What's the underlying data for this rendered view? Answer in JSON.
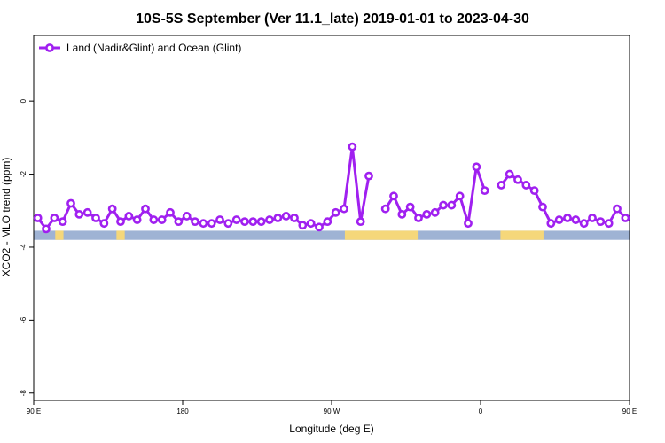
{
  "chart_data": {
    "type": "line",
    "title": "10S-5S September (Ver 11.1_late)   2019-01-01 to 2023-04-30",
    "xlabel": "Longitude (deg E)",
    "ylabel": "XCO2 - MLO trend (ppm)",
    "xlim": [
      90,
      450
    ],
    "ylim": [
      -8.2,
      1.8
    ],
    "x_ticks": [
      {
        "value": 90,
        "label": "90 E"
      },
      {
        "value": 180,
        "label": "180"
      },
      {
        "value": 270,
        "label": "90 W"
      },
      {
        "value": 360,
        "label": "0"
      },
      {
        "value": 450,
        "label": "90 E"
      },
      {
        "value": 540,
        "label": "180"
      }
    ],
    "y_ticks": [
      {
        "value": 0,
        "label": "0"
      },
      {
        "value": -2,
        "label": "-2"
      },
      {
        "value": -4,
        "label": "-4"
      },
      {
        "value": -6,
        "label": "-6"
      },
      {
        "value": -8,
        "label": "-8"
      }
    ],
    "grid": false,
    "legend_position": "top-left",
    "series": [
      {
        "name": "Land (Nadir&Glint) and Ocean (Glint)",
        "color": "#a020f0",
        "points": [
          [
            92.5,
            -3.2
          ],
          [
            97.5,
            -3.5
          ],
          [
            102.5,
            -3.2
          ],
          [
            107.5,
            -3.3
          ],
          [
            112.5,
            -2.8
          ],
          [
            117.5,
            -3.1
          ],
          [
            122.5,
            -3.05
          ],
          [
            127.5,
            -3.2
          ],
          [
            132.5,
            -3.35
          ],
          [
            137.5,
            -2.95
          ],
          [
            142.5,
            -3.3
          ],
          [
            147.5,
            -3.15
          ],
          [
            152.5,
            -3.25
          ],
          [
            157.5,
            -2.95
          ],
          [
            162.5,
            -3.25
          ],
          [
            167.5,
            -3.25
          ],
          [
            172.5,
            -3.05
          ],
          [
            177.5,
            -3.3
          ],
          [
            182.5,
            -3.15
          ],
          [
            187.5,
            -3.3
          ],
          [
            192.5,
            -3.35
          ],
          [
            197.5,
            -3.35
          ],
          [
            202.5,
            -3.25
          ],
          [
            207.5,
            -3.35
          ],
          [
            212.5,
            -3.25
          ],
          [
            217.5,
            -3.3
          ],
          [
            222.5,
            -3.3
          ],
          [
            227.5,
            -3.3
          ],
          [
            232.5,
            -3.25
          ],
          [
            237.5,
            -3.2
          ],
          [
            242.5,
            -3.15
          ],
          [
            247.5,
            -3.2
          ],
          [
            252.5,
            -3.4
          ],
          [
            257.5,
            -3.35
          ],
          [
            262.5,
            -3.45
          ],
          [
            267.5,
            -3.3
          ],
          [
            272.5,
            -3.05
          ],
          [
            277.5,
            -2.95
          ],
          [
            282.5,
            -1.25
          ],
          [
            287.5,
            -3.3
          ],
          [
            292.5,
            -2.05
          ],
          null,
          [
            302.5,
            -2.95
          ],
          [
            307.5,
            -2.6
          ],
          [
            312.5,
            -3.1
          ],
          [
            317.5,
            -2.9
          ],
          [
            322.5,
            -3.2
          ],
          [
            327.5,
            -3.1
          ],
          [
            332.5,
            -3.05
          ],
          [
            337.5,
            -2.85
          ],
          [
            342.5,
            -2.85
          ],
          [
            347.5,
            -2.6
          ],
          [
            352.5,
            -3.35
          ],
          [
            357.5,
            -1.8
          ],
          [
            362.5,
            -2.45
          ],
          null,
          [
            372.5,
            -2.3
          ],
          [
            377.5,
            -2.0
          ],
          [
            382.5,
            -2.15
          ],
          [
            387.5,
            -2.3
          ],
          [
            392.5,
            -2.45
          ],
          [
            397.5,
            -2.9
          ],
          [
            402.5,
            -3.35
          ],
          [
            407.5,
            -3.25
          ],
          [
            412.5,
            -3.2
          ],
          [
            417.5,
            -3.25
          ],
          [
            422.5,
            -3.35
          ],
          [
            427.5,
            -3.2
          ],
          [
            432.5,
            -3.3
          ],
          [
            437.5,
            -3.35
          ],
          [
            442.5,
            -2.95
          ],
          [
            447.5,
            -3.2
          ]
        ]
      }
    ],
    "surface_band": {
      "y_range": [
        -3.55,
        -3.8
      ],
      "ocean_color": "#9fb3d4",
      "land_color": "#f5d77a",
      "land_segments": [
        [
          103,
          108
        ],
        [
          140,
          145
        ],
        [
          278,
          322
        ],
        [
          372,
          398
        ],
        [
          458,
          465
        ],
        [
          560,
          567
        ]
      ]
    }
  }
}
